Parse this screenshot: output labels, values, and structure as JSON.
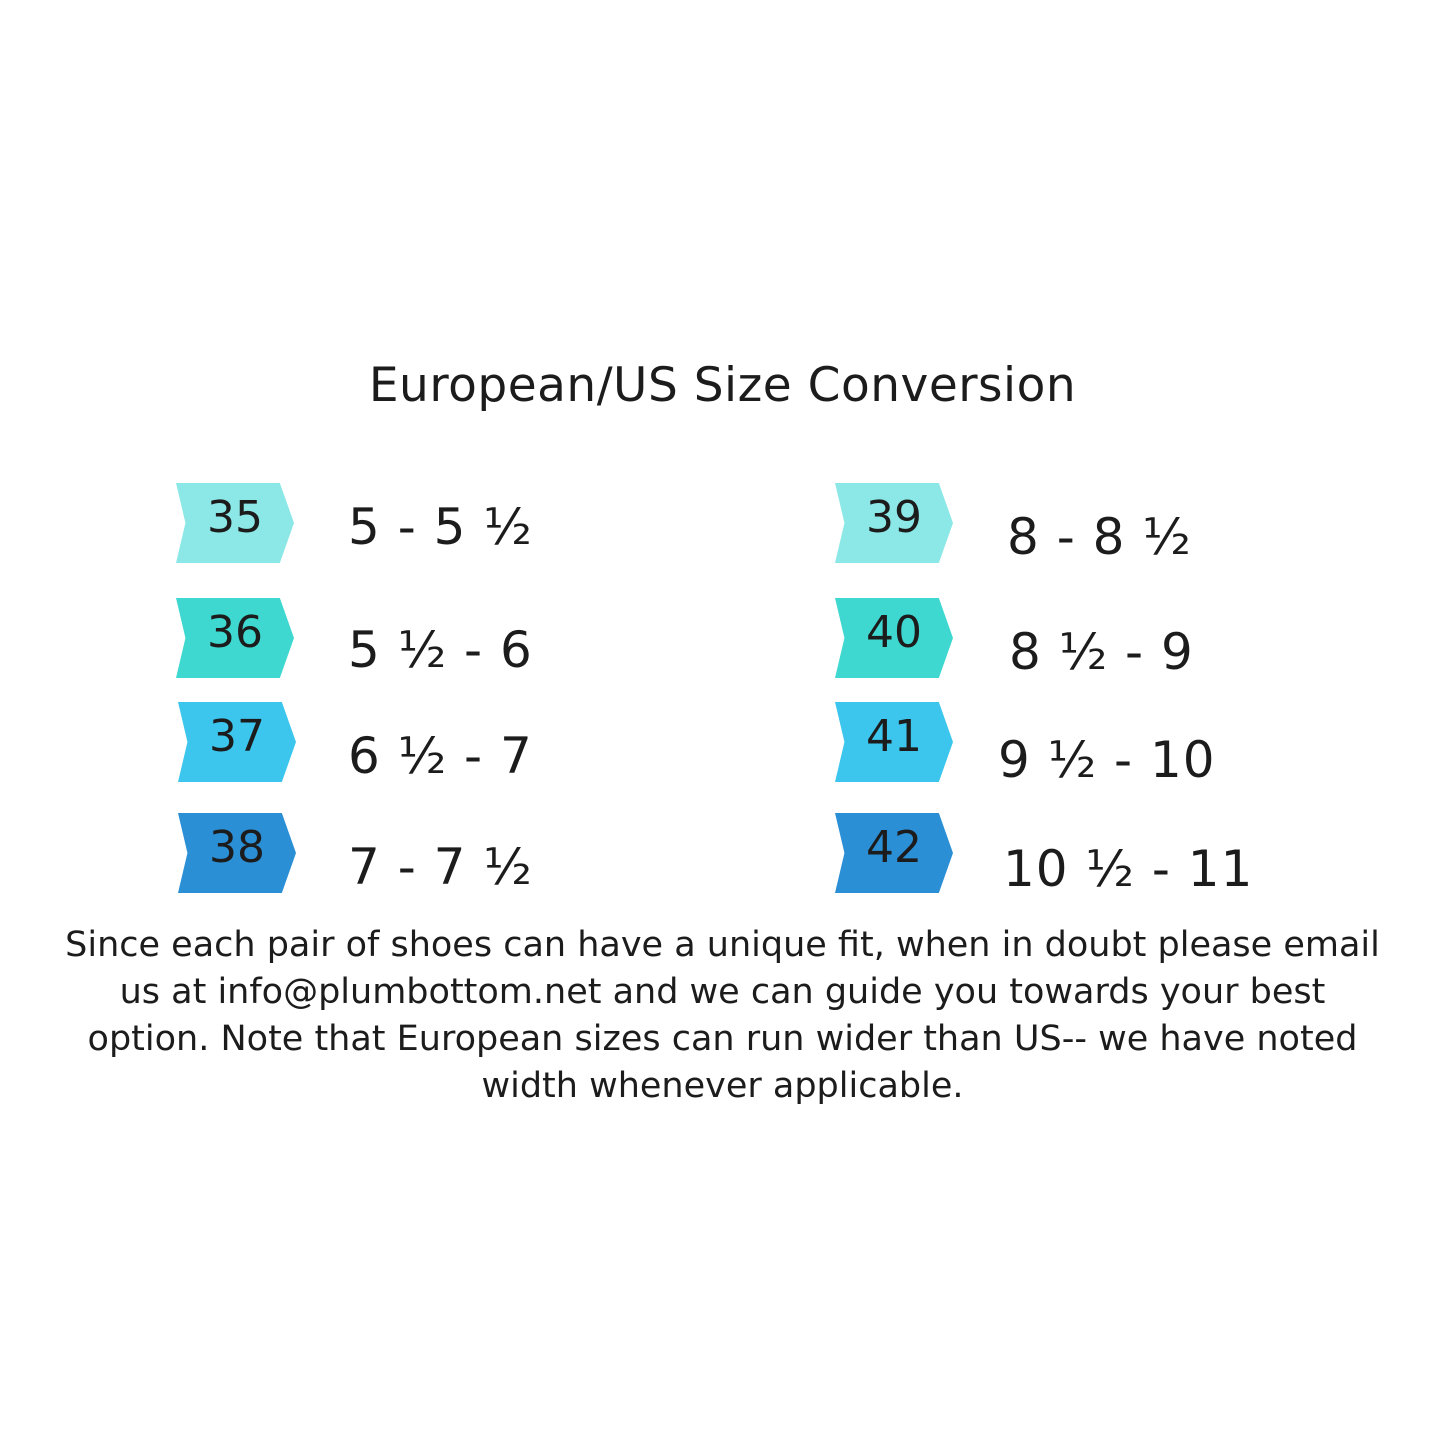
{
  "title": "European/US Size Conversion",
  "colors": {
    "tier1": "#8be8e6",
    "tier2": "#3ed8d0",
    "tier3": "#3cc6ee",
    "tier4": "#2b8fd6"
  },
  "left_column": [
    {
      "eu": "35",
      "us": "5 - 5 ½"
    },
    {
      "eu": "36",
      "us": "5 ½ - 6"
    },
    {
      "eu": "37",
      "us": "6 ½ - 7"
    },
    {
      "eu": "38",
      "us": "7 - 7 ½"
    }
  ],
  "right_column": [
    {
      "eu": "39",
      "us": "8 - 8 ½"
    },
    {
      "eu": "40",
      "us": "8 ½ - 9"
    },
    {
      "eu": "41",
      "us": "9 ½ - 10"
    },
    {
      "eu": "42",
      "us": "10 ½ - 11"
    }
  ],
  "note": "Since each pair of shoes can  have a unique fit, when in doubt please email us at info@plumbottom.net and we can guide you towards your best option. Note that European sizes can run wider than US-- we have noted width whenever applicable."
}
